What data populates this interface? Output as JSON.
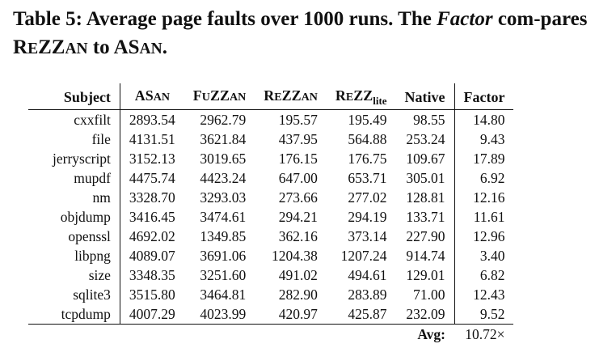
{
  "caption": {
    "label": "Table 5:",
    "text_before": "Average page faults over 1000 runs. The",
    "factor_word": "Factor",
    "text_middle": "com-pares",
    "to_word": "to",
    "rezzan_R": "R",
    "rezzan_e": "E",
    "rezzan_ZZ": "ZZ",
    "rezzan_an": "AN",
    "asan_AS": "AS",
    "asan_an": "AN",
    "period": "."
  },
  "table": {
    "headers": {
      "subject": "Subject",
      "asan_big": "AS",
      "asan_small": "AN",
      "fuzzan_f": "F",
      "fuzzan_u": "U",
      "fuzzan_zz": "ZZ",
      "fuzzan_an": "AN",
      "rezzan_r": "R",
      "rezzan_e": "E",
      "rezzan_zz": "ZZ",
      "rezzan_an": "AN",
      "rezzlite_r": "R",
      "rezzlite_e": "E",
      "rezzlite_zz": "ZZ",
      "rezzlite_sub": "lite",
      "native": "Native",
      "factor": "Factor"
    },
    "rows": [
      {
        "subject": "cxxfilt",
        "asan": "2893.54",
        "fuzzan": "2962.79",
        "rezzan": "195.57",
        "rezz_lite": "195.49",
        "native": "98.55",
        "factor": "14.80"
      },
      {
        "subject": "file",
        "asan": "4131.51",
        "fuzzan": "3621.84",
        "rezzan": "437.95",
        "rezz_lite": "564.88",
        "native": "253.24",
        "factor": "9.43"
      },
      {
        "subject": "jerryscript",
        "asan": "3152.13",
        "fuzzan": "3019.65",
        "rezzan": "176.15",
        "rezz_lite": "176.75",
        "native": "109.67",
        "factor": "17.89"
      },
      {
        "subject": "mupdf",
        "asan": "4475.74",
        "fuzzan": "4423.24",
        "rezzan": "647.00",
        "rezz_lite": "653.71",
        "native": "305.01",
        "factor": "6.92"
      },
      {
        "subject": "nm",
        "asan": "3328.70",
        "fuzzan": "3293.03",
        "rezzan": "273.66",
        "rezz_lite": "277.02",
        "native": "128.81",
        "factor": "12.16"
      },
      {
        "subject": "objdump",
        "asan": "3416.45",
        "fuzzan": "3474.61",
        "rezzan": "294.21",
        "rezz_lite": "294.19",
        "native": "133.71",
        "factor": "11.61"
      },
      {
        "subject": "openssl",
        "asan": "4692.02",
        "fuzzan": "1349.85",
        "rezzan": "362.16",
        "rezz_lite": "373.14",
        "native": "227.90",
        "factor": "12.96"
      },
      {
        "subject": "libpng",
        "asan": "4089.07",
        "fuzzan": "3691.06",
        "rezzan": "1204.38",
        "rezz_lite": "1207.24",
        "native": "914.74",
        "factor": "3.40"
      },
      {
        "subject": "size",
        "asan": "3348.35",
        "fuzzan": "3251.60",
        "rezzan": "491.02",
        "rezz_lite": "494.61",
        "native": "129.01",
        "factor": "6.82"
      },
      {
        "subject": "sqlite3",
        "asan": "3515.80",
        "fuzzan": "3464.81",
        "rezzan": "282.90",
        "rezz_lite": "283.89",
        "native": "71.00",
        "factor": "12.43"
      },
      {
        "subject": "tcpdump",
        "asan": "4007.29",
        "fuzzan": "4023.99",
        "rezzan": "420.97",
        "rezz_lite": "425.87",
        "native": "232.09",
        "factor": "9.52"
      }
    ],
    "avg_label": "Avg:",
    "avg_value": "10.72×"
  }
}
